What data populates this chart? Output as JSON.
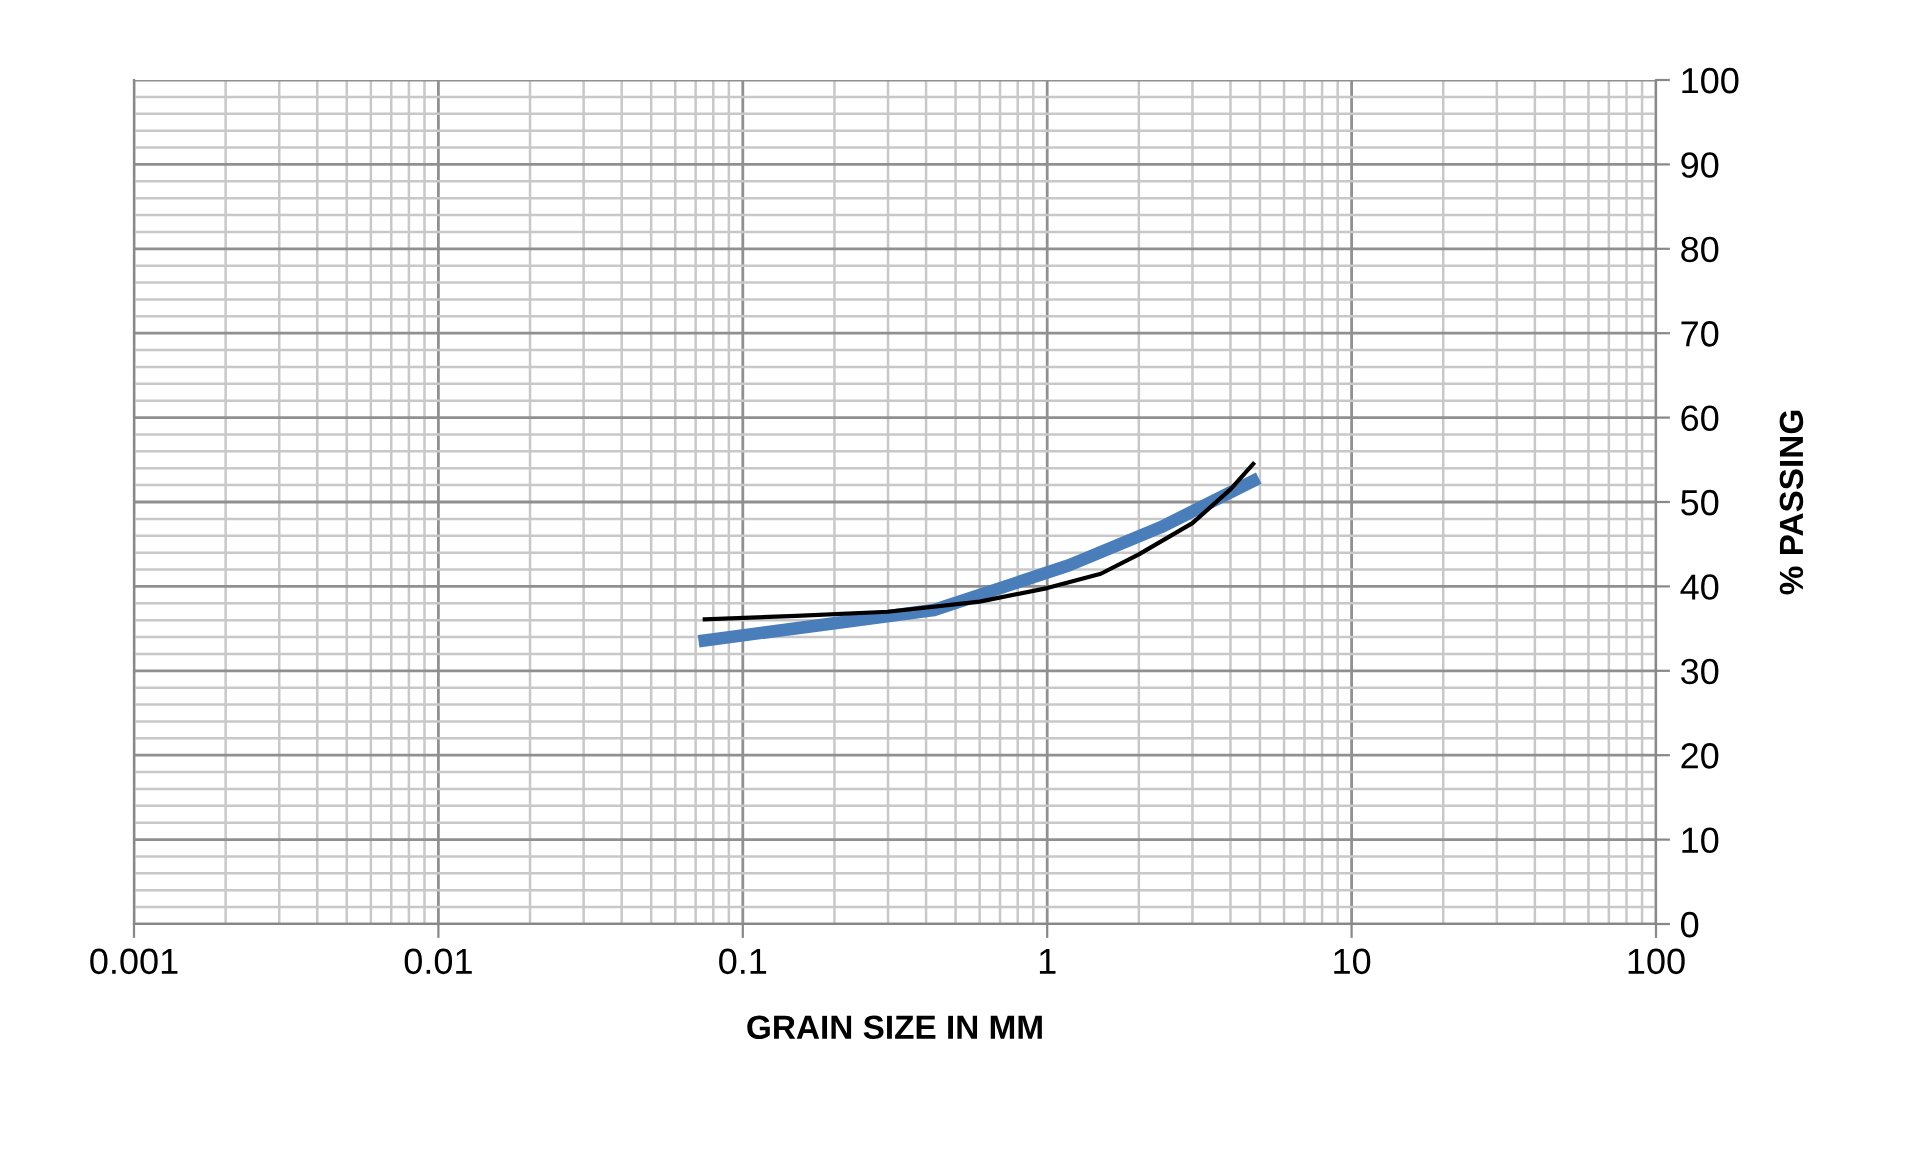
{
  "chart_data": {
    "type": "line",
    "xlabel": "GRAIN SIZE IN MM",
    "ylabel": "% PASSING",
    "log": "x",
    "xlim": [
      0.001,
      100
    ],
    "xticks": [
      0.001,
      0.01,
      0.1,
      1,
      10,
      100
    ],
    "ylim": [
      0,
      100
    ],
    "yticks": [
      0,
      10,
      20,
      30,
      40,
      50,
      60,
      70,
      80,
      90,
      100
    ],
    "grid": true,
    "marker": "none",
    "series": [
      {
        "color": "#4a7ebb",
        "x": [
          0.075,
          0.425,
          1.18,
          2.36,
          4.75
        ],
        "values": [
          33.6,
          37.2,
          42.5,
          47,
          52.5
        ]
      },
      {
        "color": "#000000",
        "type": "line",
        "x": [
          0.075,
          0.15,
          0.3,
          0.6,
          1,
          1.5,
          2,
          3,
          4,
          4.75
        ],
        "values": [
          36.1,
          36.5,
          37,
          38.2,
          39.8,
          41.5,
          43.8,
          47.5,
          51.5,
          54.5
        ]
      }
    ]
  }
}
